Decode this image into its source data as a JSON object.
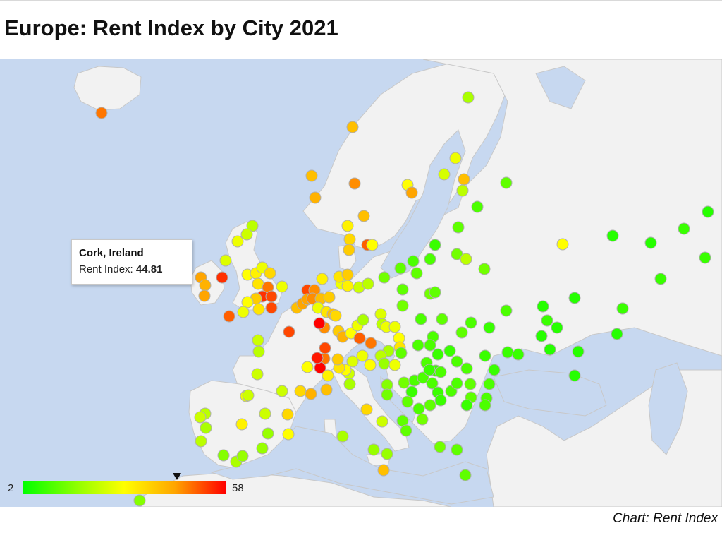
{
  "title": "Europe: Rent Index by City 2021",
  "source": "Chart: Rent Index",
  "tooltip": {
    "city": "Cork, Ireland",
    "label": "Rent Index:",
    "value": "44.81"
  },
  "legend": {
    "min": "2",
    "max": "58",
    "colors": [
      "#00ff00",
      "#a0ff00",
      "#ffff00",
      "#ffa500",
      "#ff0000"
    ],
    "marker_value": 44.81
  },
  "colors": {
    "water": "#c7d8f0",
    "land": "#f2f2f2",
    "border": "#c8c8c8"
  },
  "chart_data": {
    "type": "scatter",
    "title": "Europe: Rent Index by City 2021",
    "value_range": [
      2,
      58
    ],
    "highlighted_point": {
      "city": "Cork, Ireland",
      "value": 44.81
    }
  }
}
